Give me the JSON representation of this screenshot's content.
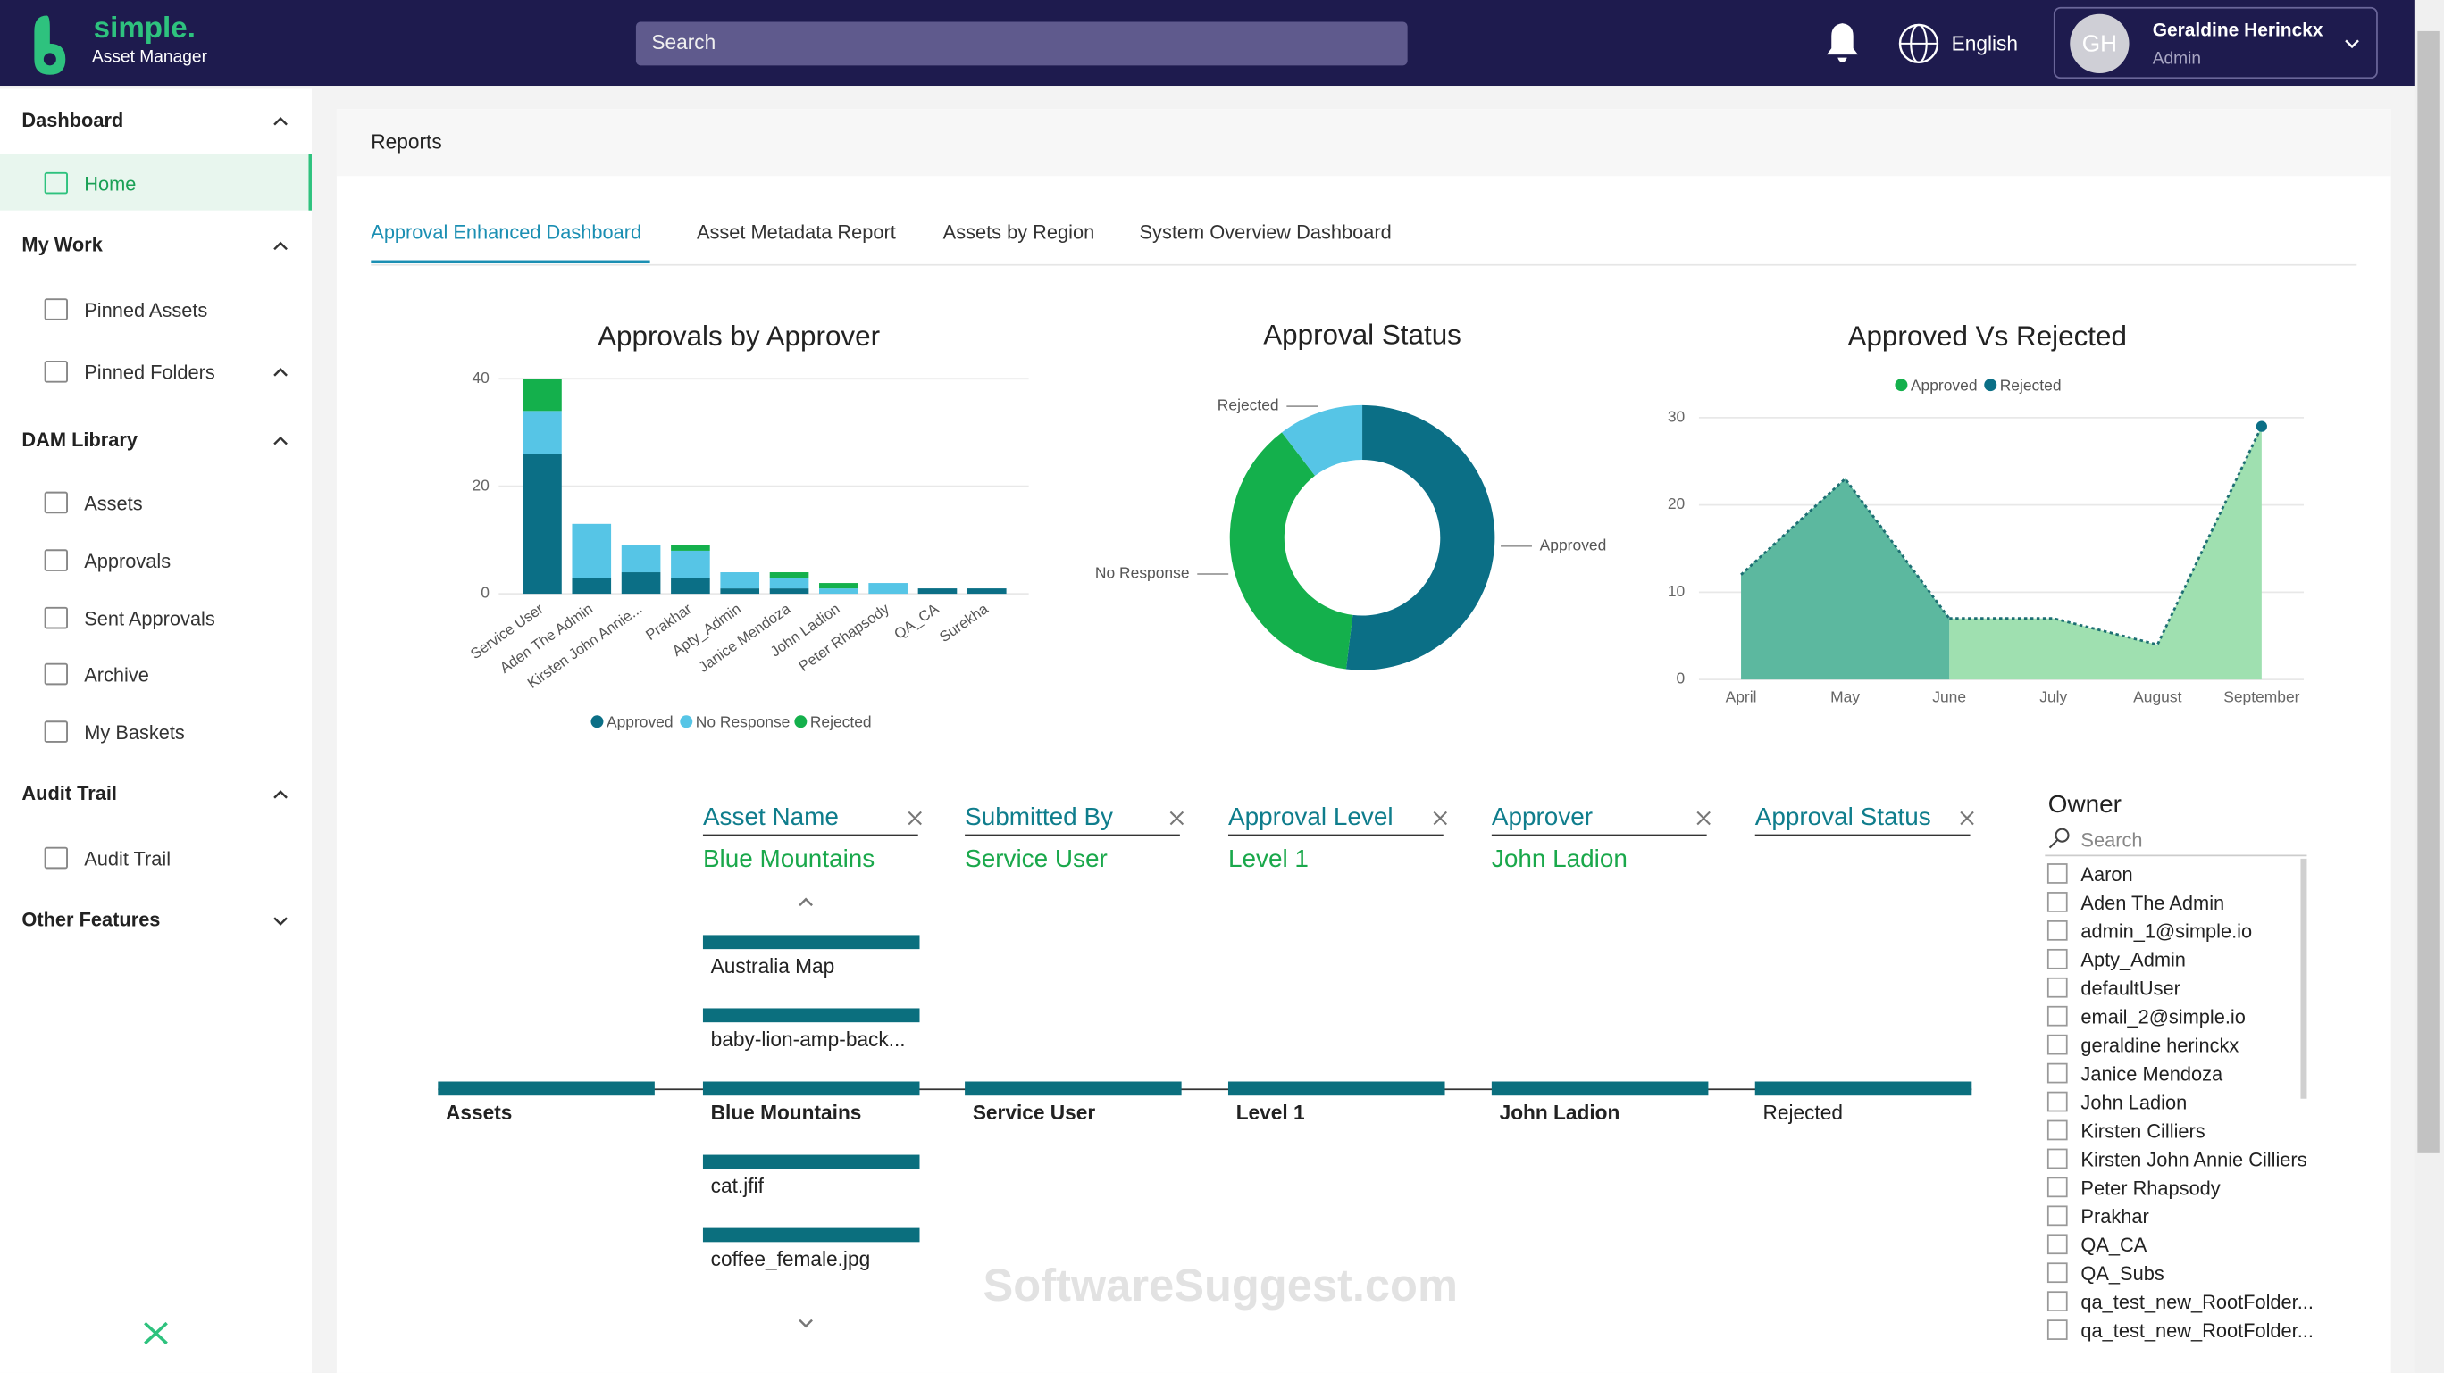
{
  "header": {
    "logo": "simple.",
    "logo_sub": "Asset Manager",
    "search_placeholder": "Search",
    "language": "English",
    "user_initials": "GH",
    "user_name": "Geraldine Herinckx",
    "user_role": "Admin"
  },
  "sidebar": {
    "sections": [
      {
        "title": "Dashboard",
        "items": [
          "Home"
        ]
      },
      {
        "title": "My Work",
        "items": [
          "Pinned Assets",
          "Pinned Folders"
        ]
      },
      {
        "title": "DAM Library",
        "items": [
          "Assets",
          "Approvals",
          "Sent Approvals",
          "Archive",
          "My Baskets"
        ]
      },
      {
        "title": "Audit Trail",
        "items": [
          "Audit Trail"
        ]
      },
      {
        "title": "Other Features",
        "items": []
      }
    ]
  },
  "page": {
    "title": "Reports",
    "tabs": [
      "Approval Enhanced Dashboard",
      "Asset Metadata Report",
      "Assets by Region",
      "System Overview Dashboard"
    ]
  },
  "charts": [
    {
      "type": "bar",
      "title": "Approvals by Approver",
      "categories": [
        "Service User",
        "Aden The Admin",
        "Kirsten John Annie...",
        "Prakhar",
        "Apty_Admin",
        "Janice Mendoza",
        "John Ladion",
        "Peter Rhapsody",
        "QA_CA",
        "Surekha"
      ],
      "series": [
        {
          "name": "Approved",
          "color": "#0b6f86",
          "values": [
            26,
            3,
            4,
            3,
            1,
            1,
            0,
            0,
            1,
            1
          ]
        },
        {
          "name": "No Response",
          "color": "#56c5e6",
          "values": [
            8,
            10,
            5,
            5,
            3,
            2,
            1,
            2,
            0,
            0
          ]
        },
        {
          "name": "Rejected",
          "color": "#14b04c",
          "values": [
            6,
            0,
            0,
            1,
            0,
            1,
            1,
            0,
            0,
            0
          ]
        }
      ],
      "ylim": [
        0,
        40
      ],
      "yticks": [
        0,
        20,
        40
      ],
      "grid": true
    },
    {
      "type": "donut",
      "title": "Approval Status",
      "categories": [
        "Approved",
        "No Response",
        "Rejected"
      ],
      "values": [
        40,
        29,
        8
      ],
      "colors": [
        "#0b6f86",
        "#14b04c",
        "#56c5e6"
      ]
    },
    {
      "type": "area",
      "title": "Approved Vs Rejected",
      "categories": [
        "April",
        "May",
        "June",
        "July",
        "August",
        "September"
      ],
      "series": [
        {
          "name": "Approved",
          "color": "#14b04c",
          "fill": "#9fe0b0",
          "values": [
            null,
            null,
            7,
            7,
            4,
            29
          ]
        },
        {
          "name": "Rejected",
          "color": "#0b6f86",
          "fill": "#5cb89f",
          "values": [
            12,
            23,
            7,
            null,
            null,
            null
          ]
        }
      ],
      "ylim": [
        0,
        30
      ],
      "yticks": [
        0,
        10,
        20,
        30
      ],
      "grid": true
    }
  ],
  "filters": [
    {
      "label": "Asset Name",
      "value": "Blue Mountains"
    },
    {
      "label": "Submitted By",
      "value": "Service User"
    },
    {
      "label": "Approval Level",
      "value": "Level 1"
    },
    {
      "label": "Approver",
      "value": "John Ladion"
    },
    {
      "label": "Approval Status"
    }
  ],
  "tree": {
    "root": "Assets",
    "asset_list": [
      "Australia Map",
      "baby-lion-amp-back...",
      "Blue Mountains",
      "cat.jfif",
      "coffee_female.jpg"
    ],
    "path": [
      "Service User",
      "Level 1",
      "John Ladion",
      "Rejected"
    ]
  },
  "owner": {
    "title": "Owner",
    "search_placeholder": "Search",
    "items": [
      "Aaron",
      "Aden The Admin",
      "admin_1@simple.io",
      "Apty_Admin",
      "defaultUser",
      "email_2@simple.io",
      "geraldine herinckx",
      "Janice Mendoza",
      "John Ladion",
      "Kirsten Cilliers",
      "Kirsten John Annie Cilliers",
      "Peter Rhapsody",
      "Prakhar",
      "QA_CA",
      "QA_Subs",
      "qa_test_new_RootFolder...",
      "qa_test_new_RootFolder..."
    ]
  },
  "watermark": "SoftwareSuggest.com"
}
